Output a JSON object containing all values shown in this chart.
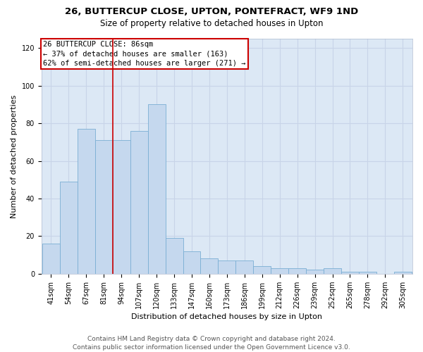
{
  "title1": "26, BUTTERCUP CLOSE, UPTON, PONTEFRACT, WF9 1ND",
  "title2": "Size of property relative to detached houses in Upton",
  "xlabel": "Distribution of detached houses by size in Upton",
  "ylabel": "Number of detached properties",
  "categories": [
    "41sqm",
    "54sqm",
    "67sqm",
    "81sqm",
    "94sqm",
    "107sqm",
    "120sqm",
    "133sqm",
    "147sqm",
    "160sqm",
    "173sqm",
    "186sqm",
    "199sqm",
    "212sqm",
    "226sqm",
    "239sqm",
    "252sqm",
    "265sqm",
    "278sqm",
    "292sqm",
    "305sqm"
  ],
  "values": [
    16,
    49,
    77,
    71,
    71,
    76,
    90,
    19,
    12,
    8,
    7,
    7,
    4,
    3,
    3,
    2,
    3,
    1,
    1,
    0,
    1
  ],
  "bar_color": "#c5d8ee",
  "bar_edge_color": "#7aafd4",
  "bar_width": 1.0,
  "ylim": [
    0,
    125
  ],
  "yticks": [
    0,
    20,
    40,
    60,
    80,
    100,
    120
  ],
  "red_line_x": 3.5,
  "annotation_line1": "26 BUTTERCUP CLOSE: 86sqm",
  "annotation_line2": "← 37% of detached houses are smaller (163)",
  "annotation_line3": "62% of semi-detached houses are larger (271) →",
  "annotation_box_color": "#ffffff",
  "annotation_box_edge": "#cc0000",
  "red_line_color": "#cc0000",
  "grid_color": "#c8d4e8",
  "background_color": "#dce8f5",
  "footer_line1": "Contains HM Land Registry data © Crown copyright and database right 2024.",
  "footer_line2": "Contains public sector information licensed under the Open Government Licence v3.0.",
  "title1_fontsize": 9.5,
  "title2_fontsize": 8.5,
  "xlabel_fontsize": 8,
  "ylabel_fontsize": 8,
  "tick_fontsize": 7,
  "annotation_fontsize": 7.5,
  "footer_fontsize": 6.5
}
